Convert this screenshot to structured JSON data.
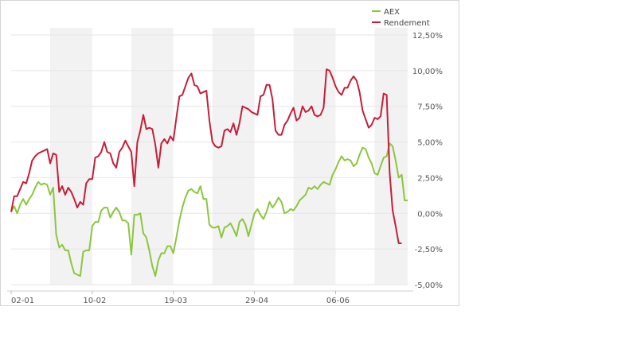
{
  "chart_data": {
    "type": "line",
    "title": "",
    "xlabel": "",
    "ylabel": "",
    "ylim": [
      -5,
      12.5
    ],
    "y_ticks": [
      -5,
      -2.5,
      0,
      2.5,
      5,
      7.5,
      10,
      12.5
    ],
    "y_tick_labels": [
      "-5,00%",
      "-2,50%",
      "0,00%",
      "2,50%",
      "5,00%",
      "7,50%",
      "10,00%",
      "12,50%"
    ],
    "x_tick_labels": [
      "02-01",
      "10-02",
      "19-03",
      "29-04",
      "06-06"
    ],
    "x_tick_index": [
      0,
      27,
      54,
      81,
      108
    ],
    "grid": true,
    "legend_position": "top-right",
    "shaded_bands": [
      [
        13,
        27
      ],
      [
        40,
        54
      ],
      [
        67,
        81
      ],
      [
        94,
        108
      ],
      [
        121,
        132
      ]
    ],
    "series": [
      {
        "name": "AEX",
        "color": "#8cc63f",
        "values": [
          0.1,
          0.5,
          0.0,
          0.6,
          1.0,
          0.6,
          1.0,
          1.3,
          1.8,
          2.2,
          2.0,
          2.1,
          2.0,
          1.3,
          1.8,
          -1.5,
          -2.4,
          -2.2,
          -2.6,
          -2.6,
          -3.5,
          -4.2,
          -4.3,
          -4.4,
          -2.7,
          -2.6,
          -2.6,
          -0.9,
          -0.6,
          -0.6,
          0.2,
          0.4,
          0.4,
          -0.3,
          0.1,
          0.4,
          0.1,
          -0.5,
          -0.5,
          -0.7,
          -2.9,
          -0.1,
          -0.1,
          0.0,
          -1.4,
          -1.7,
          -2.6,
          -3.7,
          -4.4,
          -3.3,
          -2.8,
          -2.8,
          -2.3,
          -2.3,
          -2.8,
          -1.7,
          -0.5,
          0.4,
          1.1,
          1.6,
          1.7,
          1.5,
          1.4,
          1.9,
          1.0,
          1.0,
          -0.8,
          -1.0,
          -1.0,
          -0.9,
          -1.7,
          -1.0,
          -0.9,
          -0.7,
          -1.1,
          -1.6,
          -0.6,
          -0.4,
          -0.8,
          -1.6,
          -0.8,
          0.0,
          0.3,
          -0.1,
          -0.4,
          0.1,
          0.8,
          0.4,
          0.7,
          1.1,
          0.8,
          0.0,
          0.1,
          0.3,
          0.2,
          0.5,
          0.9,
          1.1,
          1.3,
          1.8,
          1.7,
          1.9,
          1.7,
          2.0,
          2.2,
          2.1,
          2.0,
          2.7,
          3.1,
          3.6,
          4.0,
          3.7,
          3.8,
          3.7,
          3.3,
          3.5,
          4.1,
          4.6,
          4.5,
          3.9,
          3.5,
          2.8,
          2.7,
          3.3,
          3.9,
          4.0,
          4.9,
          4.7,
          3.7,
          2.5,
          2.7,
          0.9,
          0.9
        ]
      },
      {
        "name": "Rendement",
        "color": "#c41f3b",
        "values": [
          0.1,
          1.2,
          1.2,
          1.7,
          2.2,
          2.1,
          2.8,
          3.7,
          4.0,
          4.2,
          4.3,
          4.4,
          4.5,
          3.5,
          4.2,
          4.1,
          1.5,
          1.9,
          1.3,
          1.8,
          1.5,
          1.0,
          0.4,
          0.8,
          0.6,
          2.1,
          2.4,
          2.4,
          3.9,
          4.0,
          4.3,
          5.0,
          4.3,
          4.2,
          3.5,
          3.2,
          4.3,
          4.6,
          5.1,
          4.7,
          4.3,
          1.9,
          5.0,
          5.8,
          6.9,
          5.9,
          6.0,
          5.9,
          4.8,
          3.2,
          4.9,
          5.2,
          4.9,
          5.4,
          5.1,
          6.7,
          8.2,
          8.3,
          8.9,
          9.5,
          9.8,
          9.0,
          8.9,
          8.4,
          8.5,
          8.6,
          6.5,
          5.0,
          4.7,
          4.6,
          4.7,
          5.8,
          5.9,
          5.7,
          6.3,
          5.5,
          6.3,
          7.5,
          7.4,
          7.3,
          7.1,
          7.0,
          6.9,
          8.2,
          8.3,
          9.0,
          9.0,
          8.0,
          5.8,
          5.5,
          5.5,
          6.2,
          6.5,
          7.0,
          7.4,
          6.5,
          6.7,
          7.5,
          7.1,
          7.2,
          7.5,
          6.9,
          6.8,
          6.9,
          7.4,
          10.1,
          10.0,
          9.5,
          8.9,
          8.5,
          8.3,
          8.8,
          8.8,
          9.3,
          9.6,
          9.3,
          8.5,
          7.2,
          6.6,
          6.0,
          6.2,
          6.7,
          6.6,
          6.8,
          8.4,
          8.3,
          2.8,
          0.2,
          -0.9,
          -2.1,
          -2.1
        ]
      }
    ]
  }
}
